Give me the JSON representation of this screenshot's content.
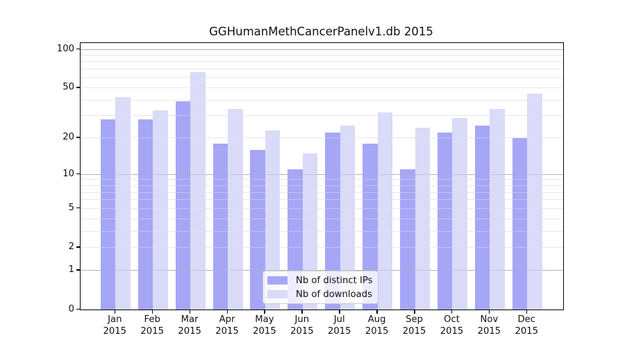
{
  "figure": {
    "background": "#ffffff"
  },
  "chart_data": {
    "type": "bar",
    "title": "GGHumanMethCancerPanelv1.db 2015",
    "categories": [
      "Jan",
      "Feb",
      "Mar",
      "Apr",
      "May",
      "Jun",
      "Jul",
      "Aug",
      "Sep",
      "Oct",
      "Nov",
      "Dec"
    ],
    "year_label": "2015",
    "series": [
      {
        "name": "Nb of distinct IPs",
        "color": "#a6a6f6",
        "values": [
          28,
          28,
          39,
          18,
          16,
          11,
          22,
          18,
          11,
          22,
          25,
          20
        ]
      },
      {
        "name": "Nb of downloads",
        "color": "#dadaf9",
        "values": [
          42,
          33,
          66,
          34,
          23,
          15,
          25,
          32,
          24,
          29,
          34,
          45
        ]
      }
    ],
    "xlabel": "",
    "ylabel": "",
    "yscale": "log10(value+1)",
    "ylim": [
      0,
      112
    ],
    "ytick_values": [
      0,
      1,
      2,
      5,
      10,
      20,
      50,
      100
    ],
    "grid_major_values": [
      1,
      10,
      100
    ],
    "grid_minor_values": [
      2,
      3,
      4,
      5,
      6,
      7,
      8,
      9,
      20,
      30,
      40,
      50,
      60,
      70,
      80,
      90
    ],
    "grid": "on",
    "legend_position": "lower center"
  },
  "colors": {
    "grid_major": "#b2b2b2",
    "grid_minor": "#e7e7e7",
    "axis": "#000000",
    "legend_border": "#cccccc"
  }
}
